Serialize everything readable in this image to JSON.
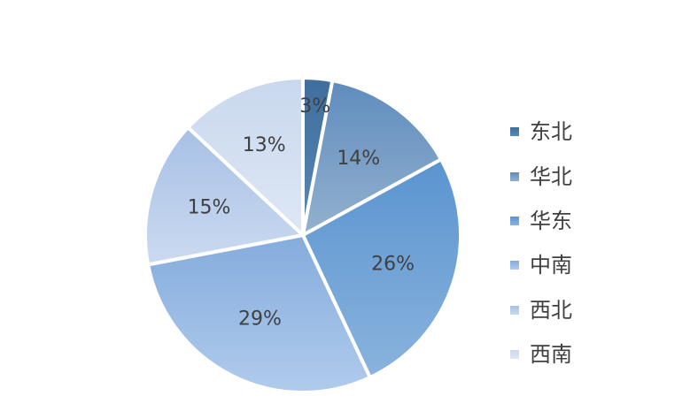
{
  "chart_data": {
    "type": "pie",
    "title": "",
    "categories": [
      "东北",
      "华北",
      "华东",
      "中南",
      "西北",
      "西南"
    ],
    "values": [
      3,
      14,
      26,
      29,
      15,
      13
    ],
    "value_labels": [
      "3%",
      "14%",
      "26%",
      "29%",
      "15%",
      "13%"
    ],
    "legend_position": "right",
    "start_angle": "12 o'clock, clockwise",
    "colors": [
      [
        "#3f6e9d",
        "#5b88b4"
      ],
      [
        "#5f8cbe",
        "#93b1ce"
      ],
      [
        "#5a94d0",
        "#8ab3dd"
      ],
      [
        "#84acdd",
        "#b0cbec"
      ],
      [
        "#a7c0e5",
        "#cbdaf0"
      ],
      [
        "#c9d8ee",
        "#dee7f5"
      ]
    ]
  }
}
